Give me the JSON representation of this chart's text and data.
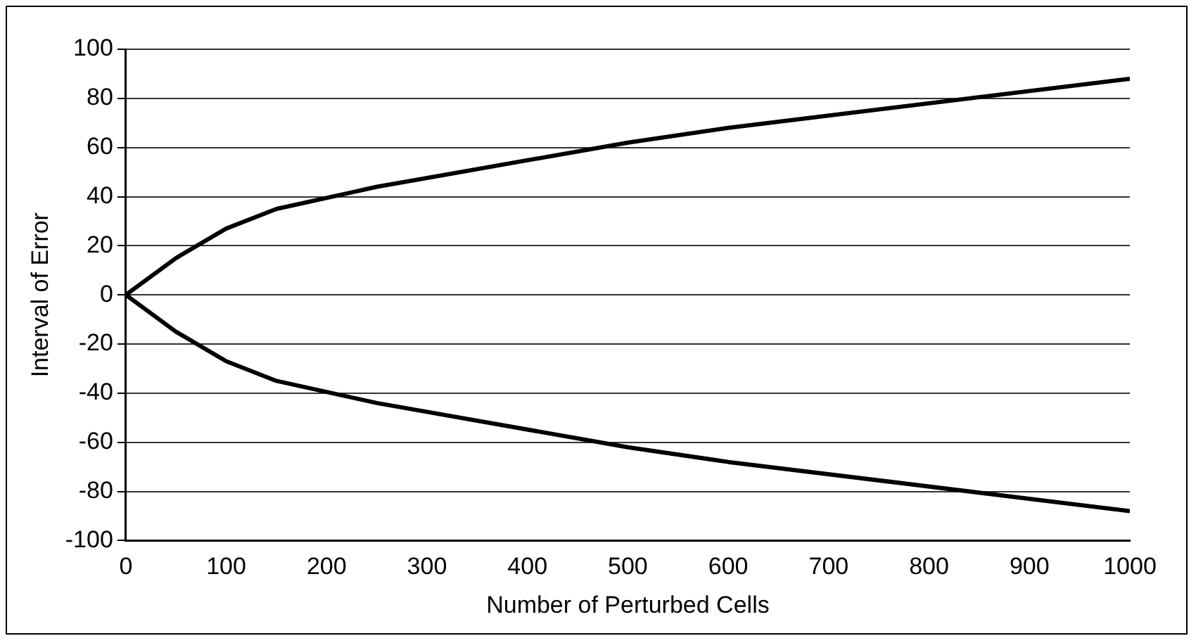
{
  "chart_data": {
    "type": "line",
    "xlabel": "Number of Perturbed Cells",
    "ylabel": "Interval of Error",
    "x": [
      0,
      50,
      100,
      150,
      250,
      500,
      600,
      1000
    ],
    "series": [
      {
        "color": "#000000",
        "values": [
          0,
          15,
          27,
          35,
          44,
          62,
          68,
          88
        ]
      },
      {
        "color": "#000000",
        "values": [
          0,
          -15,
          -27,
          -35,
          -44,
          -62,
          -68,
          -88
        ]
      }
    ],
    "xlim": [
      0,
      1000
    ],
    "xticks": [
      0,
      100,
      200,
      300,
      400,
      500,
      600,
      700,
      800,
      900,
      1000
    ],
    "ylim": [
      -100,
      100
    ],
    "yticks": [
      -100,
      -80,
      -60,
      -40,
      -20,
      0,
      20,
      40,
      60,
      80,
      100
    ],
    "grid": "y",
    "legend": false,
    "marker": "none",
    "line_style": "solid"
  }
}
